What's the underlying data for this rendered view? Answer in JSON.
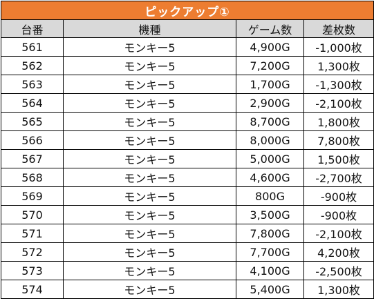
{
  "title": "ピックアップ①",
  "headers": {
    "no": "台番",
    "model": "機種",
    "games": "ゲーム数",
    "diff": "差枚数"
  },
  "rows": [
    {
      "no": "561",
      "model": "モンキー5",
      "games": "4,900G",
      "diff": "-1,000枚"
    },
    {
      "no": "562",
      "model": "モンキー5",
      "games": "7,200G",
      "diff": "1,300枚"
    },
    {
      "no": "563",
      "model": "モンキー5",
      "games": "1,700G",
      "diff": "-1,300枚"
    },
    {
      "no": "564",
      "model": "モンキー5",
      "games": "2,900G",
      "diff": "-2,100枚"
    },
    {
      "no": "565",
      "model": "モンキー5",
      "games": "8,700G",
      "diff": "1,800枚"
    },
    {
      "no": "566",
      "model": "モンキー5",
      "games": "8,000G",
      "diff": "7,800枚"
    },
    {
      "no": "567",
      "model": "モンキー5",
      "games": "5,000G",
      "diff": "1,500枚"
    },
    {
      "no": "568",
      "model": "モンキー5",
      "games": "4,600G",
      "diff": "-2,700枚"
    },
    {
      "no": "569",
      "model": "モンキー5",
      "games": "800G",
      "diff": "-900枚"
    },
    {
      "no": "570",
      "model": "モンキー5",
      "games": "3,500G",
      "diff": "-900枚"
    },
    {
      "no": "571",
      "model": "モンキー5",
      "games": "7,800G",
      "diff": "-2,100枚"
    },
    {
      "no": "572",
      "model": "モンキー5",
      "games": "7,700G",
      "diff": "4,200枚"
    },
    {
      "no": "573",
      "model": "モンキー5",
      "games": "4,100G",
      "diff": "-2,500枚"
    },
    {
      "no": "574",
      "model": "モンキー5",
      "games": "5,400G",
      "diff": "1,300枚"
    }
  ]
}
